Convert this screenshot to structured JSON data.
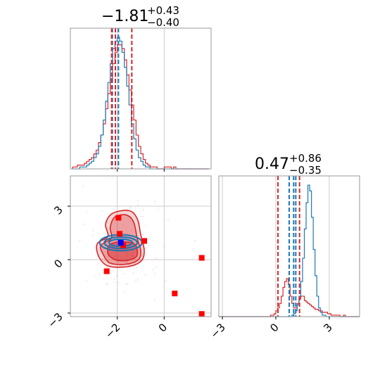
{
  "chart_data": {
    "type": "corner",
    "params": [
      {
        "title_main": "−1.81",
        "title_plus": "+0.43",
        "title_minus": "−0.40",
        "range": [
          -4.0,
          2.0
        ],
        "median": -1.81,
        "lo": -2.21,
        "hi": -1.38
      },
      {
        "title_main": "0.47",
        "title_plus": "+0.86",
        "title_minus": "−0.35",
        "range": [
          -3.2,
          4.7
        ],
        "median": 0.47,
        "lo": 0.12,
        "hi": 1.33
      }
    ],
    "ticks_x1": [
      {
        "v": -2,
        "label": "−2"
      },
      {
        "v": 0,
        "label": "0"
      }
    ],
    "ticks_y2": [
      {
        "v": 3,
        "label": "3"
      },
      {
        "v": 0,
        "label": "0"
      },
      {
        "v": -3,
        "label": "−3"
      }
    ],
    "ticks_x2": [
      {
        "v": -3,
        "label": "−3"
      },
      {
        "v": 0,
        "label": "0"
      },
      {
        "v": 3,
        "label": "3"
      }
    ],
    "series": [
      {
        "color": "#d62728",
        "hist1": {
          "start": -3.9,
          "step": 0.1,
          "counts": [
            1,
            1,
            2,
            2,
            2,
            3,
            4,
            5,
            6,
            8,
            10,
            14,
            18,
            24,
            32,
            40,
            48,
            56,
            62,
            66,
            66,
            64,
            58,
            50,
            42,
            34,
            26,
            18,
            12,
            8,
            5,
            3,
            2,
            1,
            1,
            1,
            0,
            0,
            0,
            1,
            1,
            1,
            0,
            1,
            0,
            0,
            0,
            0,
            0,
            0,
            0,
            0,
            0,
            0,
            0,
            0,
            0,
            0
          ]
        },
        "hist2": {
          "start": -3.2,
          "step": 0.1,
          "counts": [
            0,
            0,
            0,
            0,
            0,
            0,
            0,
            0,
            0,
            0,
            0,
            0,
            0,
            0,
            0,
            0,
            0,
            0,
            0,
            0,
            0,
            0,
            0,
            0,
            0,
            0,
            0,
            0,
            0,
            1,
            1,
            2,
            4,
            6,
            9,
            14,
            20,
            24,
            26,
            22,
            14,
            9,
            6,
            6,
            9,
            12,
            14,
            14,
            11,
            10,
            9,
            8,
            7,
            6,
            5,
            5,
            4,
            4,
            3,
            3,
            3,
            2,
            2,
            1,
            1,
            1,
            1,
            1,
            0,
            0,
            1,
            0,
            0,
            0,
            0,
            0,
            0,
            0,
            0
          ]
        },
        "cross": {
          "x": -1.8,
          "y": 0.45
        }
      },
      {
        "color": "#1f77b4",
        "hist1": {
          "start": -3.9,
          "step": 0.1,
          "counts": [
            0,
            0,
            0,
            1,
            1,
            1,
            2,
            3,
            4,
            6,
            8,
            12,
            18,
            26,
            36,
            46,
            56,
            64,
            68,
            70,
            68,
            62,
            54,
            44,
            34,
            24,
            16,
            10,
            6,
            4,
            2,
            1,
            1,
            0,
            0,
            0,
            0,
            0,
            0,
            0,
            0,
            0,
            0,
            0,
            0,
            0,
            0,
            0,
            0,
            0,
            0,
            0,
            0,
            0,
            0,
            0,
            0,
            0
          ]
        },
        "hist2": {
          "start": -3.2,
          "step": 0.1,
          "counts": [
            0,
            0,
            0,
            0,
            0,
            0,
            0,
            0,
            0,
            0,
            0,
            0,
            0,
            0,
            0,
            0,
            0,
            0,
            0,
            0,
            0,
            0,
            0,
            0,
            0,
            0,
            0,
            0,
            0,
            0,
            0,
            0,
            0,
            0,
            0,
            0,
            0,
            0,
            0,
            0,
            0,
            1,
            2,
            4,
            8,
            14,
            24,
            40,
            60,
            78,
            90,
            86,
            68,
            46,
            28,
            14,
            6,
            3,
            1,
            1,
            0,
            0,
            0,
            0,
            0,
            0,
            0,
            0,
            0,
            0,
            0,
            0,
            0,
            0,
            0,
            0,
            0,
            0,
            0
          ]
        },
        "cross": {
          "x": -1.85,
          "y": 0.95
        }
      }
    ],
    "vlines": {
      "p1": [
        {
          "v": -2.21,
          "color": "#1f77b4"
        },
        {
          "v": -1.95,
          "color": "#1f77b4"
        },
        {
          "v": -2.08,
          "color": "#d62728"
        },
        {
          "v": -2.24,
          "color": "#d62728"
        },
        {
          "v": -1.38,
          "color": "#d62728"
        }
      ],
      "p2": [
        {
          "v": 0.12,
          "color": "#d62728"
        },
        {
          "v": 1.33,
          "color": "#d62728"
        },
        {
          "v": 0.75,
          "color": "#1f77b4"
        },
        {
          "v": 1.0,
          "color": "#1f77b4"
        },
        {
          "v": 1.12,
          "color": "#1f77b4"
        }
      ]
    },
    "outliers": [
      {
        "x": -1.95,
        "y": 2.35
      },
      {
        "x": -1.9,
        "y": 1.45
      },
      {
        "x": -0.85,
        "y": 1.05
      },
      {
        "x": -2.45,
        "y": -0.65
      },
      {
        "x": 0.45,
        "y": -1.9
      },
      {
        "x": 1.6,
        "y": 0.1
      },
      {
        "x": 1.6,
        "y": -3.05
      },
      {
        "x": -1.75,
        "y": 0.8
      }
    ],
    "truth_point": {
      "x": -1.85,
      "y": 0.95,
      "color": "#0000ff"
    }
  }
}
